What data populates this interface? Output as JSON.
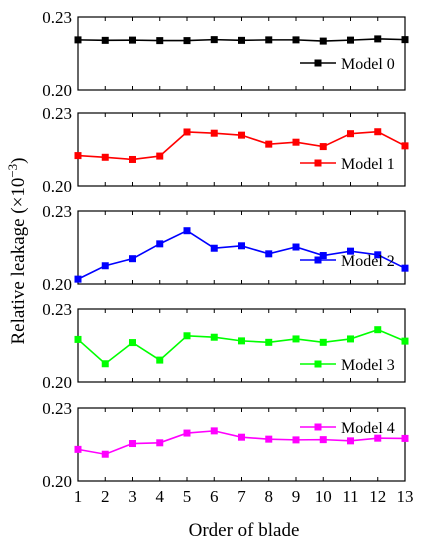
{
  "chart_data": {
    "type": "line",
    "x": [
      1,
      2,
      3,
      4,
      5,
      6,
      7,
      8,
      9,
      10,
      11,
      12,
      13
    ],
    "x_tick_labels": [
      "1",
      "2",
      "3",
      "4",
      "5",
      "6",
      "7",
      "8",
      "9",
      "10",
      "11",
      "12",
      "13"
    ],
    "xlabel": "Order of blade",
    "ylabel": "Relative leakage (×10",
    "ylabel_exponent": "−3",
    "ylabel_close": ")",
    "ylim": [
      0.2,
      0.23
    ],
    "y_tick_labels": [
      "0.20",
      "0.23"
    ],
    "legend_position": "right",
    "series": [
      {
        "name": "Model 0",
        "color": "#000000",
        "values": [
          0.2206,
          0.2204,
          0.2205,
          0.2203,
          0.2203,
          0.2207,
          0.2204,
          0.2206,
          0.2206,
          0.2201,
          0.2205,
          0.221,
          0.2207
        ]
      },
      {
        "name": "Model 1",
        "color": "#ff0000",
        "values": [
          0.2125,
          0.2118,
          0.2109,
          0.2123,
          0.2222,
          0.2217,
          0.2209,
          0.2172,
          0.218,
          0.2162,
          0.2215,
          0.2223,
          0.2165
        ]
      },
      {
        "name": "Model 2",
        "color": "#0000ff",
        "values": [
          0.202,
          0.2075,
          0.2104,
          0.2165,
          0.2219,
          0.2147,
          0.2157,
          0.2124,
          0.2152,
          0.2117,
          0.2135,
          0.212,
          0.2065
        ]
      },
      {
        "name": "Model 3",
        "color": "#00ff00",
        "values": [
          0.2175,
          0.2075,
          0.2162,
          0.209,
          0.219,
          0.2184,
          0.2169,
          0.2163,
          0.2177,
          0.2163,
          0.2177,
          0.2215,
          0.2168
        ]
      },
      {
        "name": "Model 4",
        "color": "#ff00ff",
        "values": [
          0.213,
          0.211,
          0.2154,
          0.2157,
          0.2197,
          0.2206,
          0.218,
          0.2172,
          0.2169,
          0.217,
          0.2165,
          0.2176,
          0.2175
        ]
      }
    ]
  }
}
